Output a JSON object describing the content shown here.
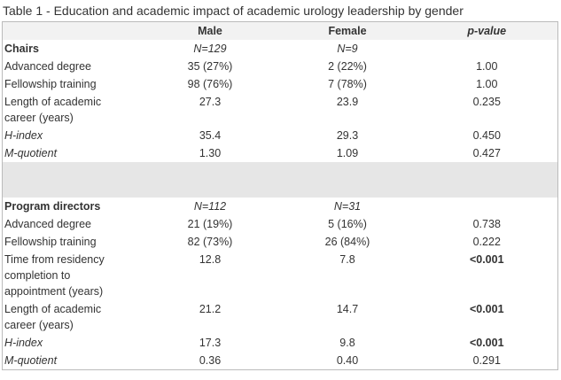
{
  "title": "Table 1 - Education and academic impact of academic urology leadership by gender",
  "columns": [
    "Male",
    "Female",
    "p-value"
  ],
  "sections": [
    {
      "title": "Chairs",
      "n": [
        "N=129",
        "N=9"
      ],
      "rows": [
        {
          "label": "Advanced degree",
          "values": [
            "35 (27%)",
            "2 (22%)",
            "1.00"
          ]
        },
        {
          "label": "Fellowship training",
          "values": [
            "98 (76%)",
            "7 (78%)",
            "1.00"
          ]
        },
        {
          "label": "Length of academic career (years)",
          "values": [
            "27.3",
            "23.9",
            "0.235"
          ]
        },
        {
          "label": "H-index",
          "italic": true,
          "values": [
            "35.4",
            "29.3",
            "0.450"
          ]
        },
        {
          "label": "M-quotient",
          "italic": true,
          "values": [
            "1.30",
            "1.09",
            "0.427"
          ]
        }
      ]
    },
    {
      "title": "Program directors",
      "n": [
        "N=112",
        "N=31"
      ],
      "rows": [
        {
          "label": "Advanced degree",
          "values": [
            "21 (19%)",
            "5 (16%)",
            "0.738"
          ]
        },
        {
          "label": "Fellowship training",
          "values": [
            "82 (73%)",
            "26 (84%)",
            "0.222"
          ]
        },
        {
          "label": "Time from residency completion to appointment (years)",
          "values": [
            "12.8",
            "7.8",
            "<0.001"
          ],
          "bold_p": true
        },
        {
          "label": "Length of academic career (years)",
          "values": [
            "21.2",
            "14.7",
            "<0.001"
          ],
          "bold_p": true
        },
        {
          "label": "H-index",
          "italic": true,
          "values": [
            "17.3",
            "9.8",
            "<0.001"
          ],
          "bold_p": true
        },
        {
          "label": "M-quotient",
          "italic": true,
          "values": [
            "0.36",
            "0.40",
            "0.291"
          ]
        }
      ]
    }
  ]
}
